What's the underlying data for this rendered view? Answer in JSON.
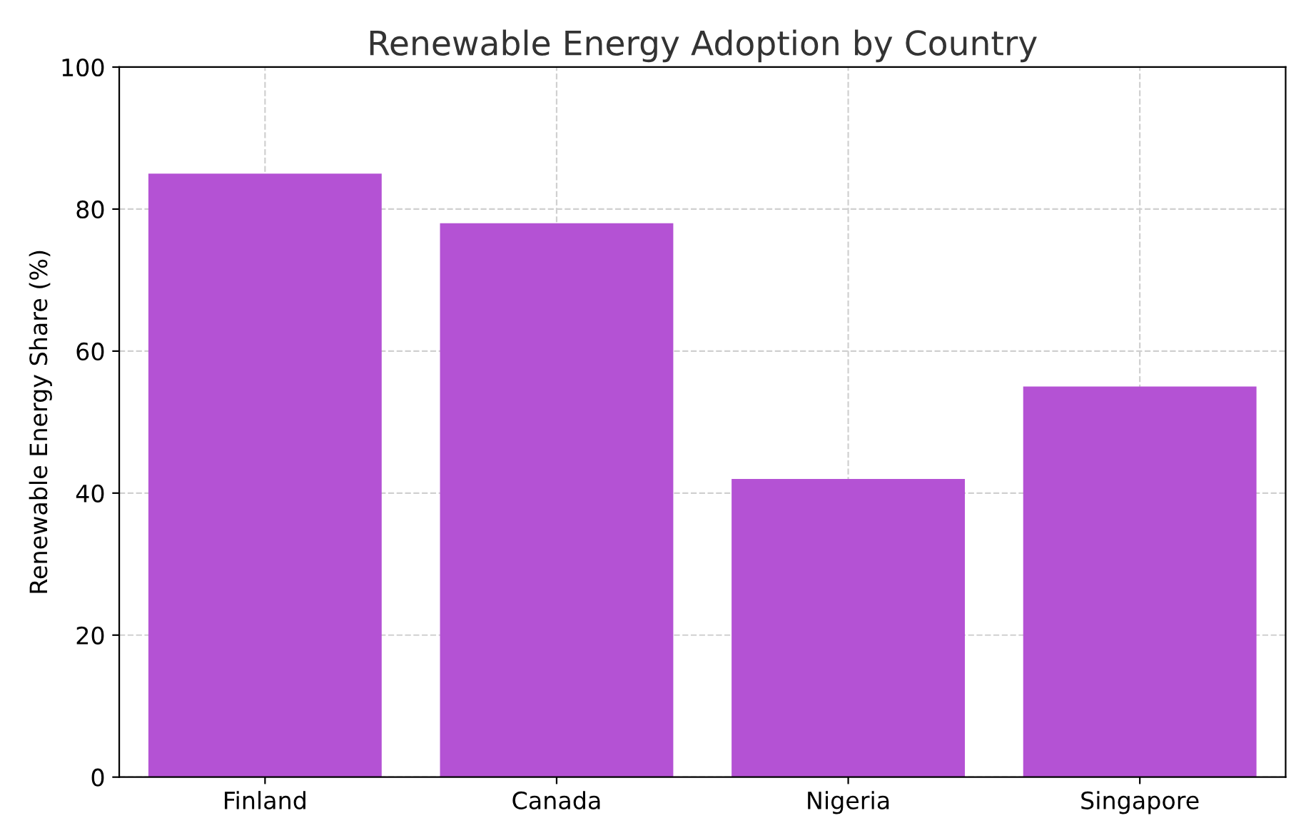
{
  "chart_data": {
    "type": "bar",
    "title": "Renewable Energy Adoption by Country",
    "ylabel": "Renewable Energy Share (%)",
    "categories": [
      "Finland",
      "Canada",
      "Nigeria",
      "Singapore"
    ],
    "values": [
      85,
      78,
      42,
      55
    ],
    "color": "#b452d4",
    "ylim": [
      0,
      100
    ],
    "yticks": [
      0,
      20,
      40,
      60,
      80,
      100
    ],
    "grid": true
  }
}
